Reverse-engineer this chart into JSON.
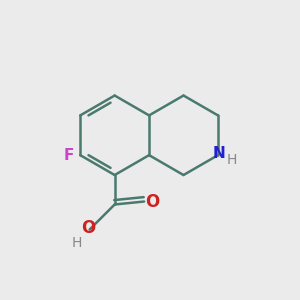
{
  "background_color": "#ebebeb",
  "bond_color": "#4a7a6e",
  "bond_width": 1.8,
  "atom_colors": {
    "F": "#cc44cc",
    "N": "#2222cc",
    "O": "#cc2222",
    "H": "#888888",
    "C": "#4a7a6e"
  }
}
